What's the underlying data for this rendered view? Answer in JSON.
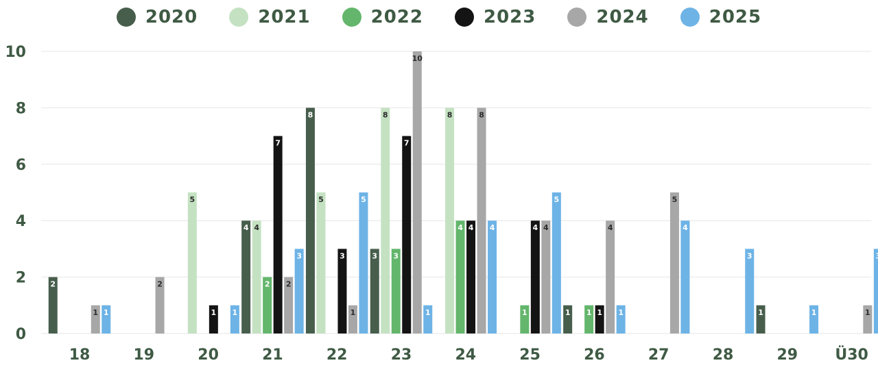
{
  "chart_data": {
    "type": "bar",
    "categories": [
      "18",
      "19",
      "20",
      "21",
      "22",
      "23",
      "24",
      "25",
      "26",
      "27",
      "28",
      "29",
      "Ü30"
    ],
    "series": [
      {
        "name": "2020",
        "color": "#475e4c",
        "values": [
          2,
          null,
          null,
          4,
          8,
          3,
          null,
          null,
          1,
          null,
          null,
          1,
          null
        ]
      },
      {
        "name": "2021",
        "color": "#c4e2c2",
        "values": [
          null,
          null,
          5,
          4,
          5,
          8,
          8,
          null,
          null,
          null,
          null,
          null,
          null
        ]
      },
      {
        "name": "2022",
        "color": "#63b66b",
        "values": [
          null,
          null,
          null,
          2,
          null,
          3,
          4,
          1,
          1,
          null,
          null,
          null,
          null
        ]
      },
      {
        "name": "2023",
        "color": "#141414",
        "values": [
          null,
          null,
          1,
          7,
          3,
          7,
          4,
          4,
          1,
          null,
          null,
          null,
          null
        ]
      },
      {
        "name": "2024",
        "color": "#a7a7a7",
        "values": [
          1,
          2,
          null,
          2,
          1,
          10,
          8,
          4,
          4,
          5,
          null,
          null,
          1
        ]
      },
      {
        "name": "2025",
        "color": "#6db3e6",
        "values": [
          1,
          null,
          1,
          3,
          5,
          1,
          4,
          5,
          1,
          4,
          3,
          1,
          3
        ]
      }
    ],
    "yticks": [
      0,
      2,
      4,
      6,
      8,
      10
    ],
    "ylim": [
      0,
      10
    ],
    "legend_position": "top-center",
    "grid": true,
    "data_labels": true
  }
}
